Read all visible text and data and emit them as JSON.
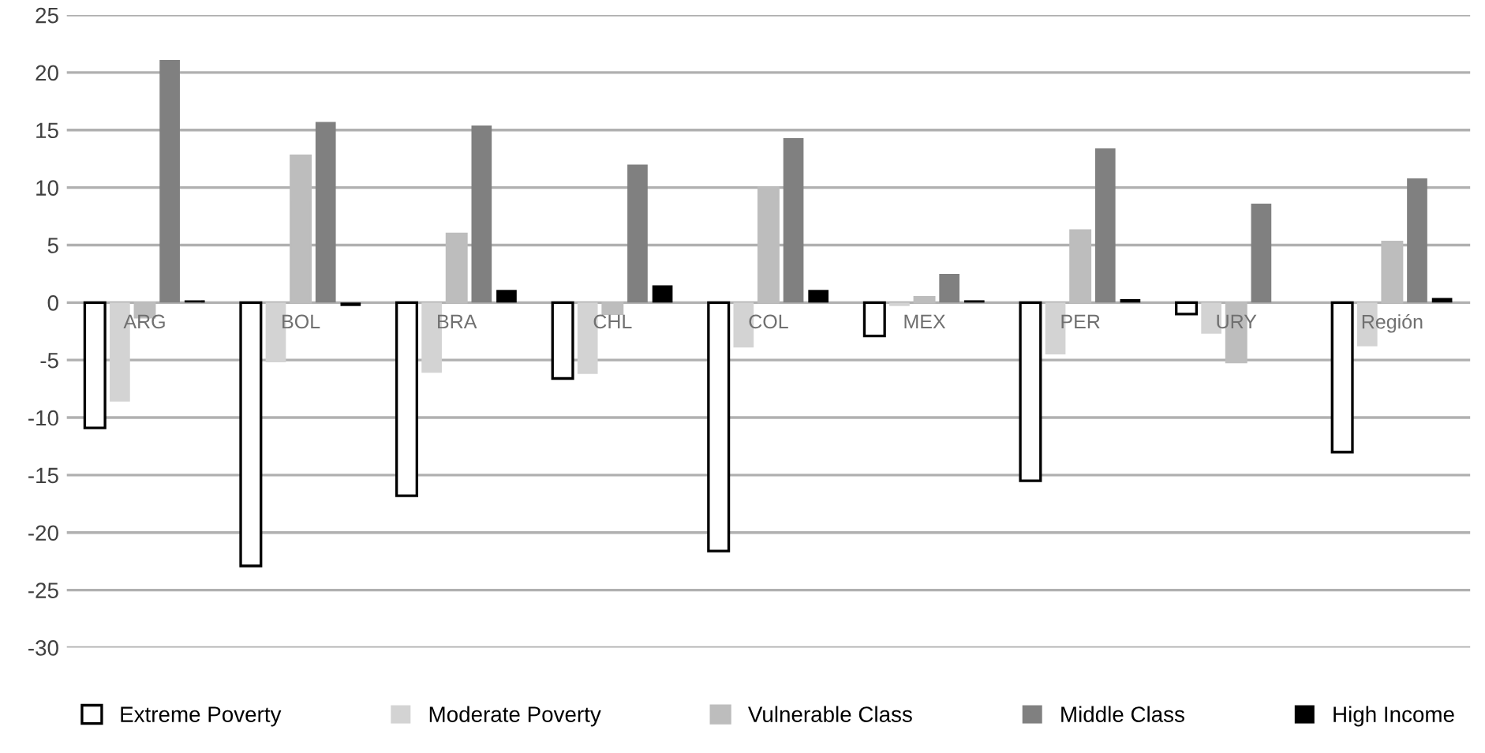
{
  "chart_data": {
    "type": "bar",
    "categories": [
      "ARG",
      "BOL",
      "BRA",
      "CHL",
      "COL",
      "MEX",
      "PER",
      "URY",
      "Región"
    ],
    "series": [
      {
        "name": "Extreme Poverty",
        "color": "#ffffff",
        "values": [
          -10.9,
          -22.9,
          -16.8,
          -6.6,
          -21.6,
          -2.9,
          -15.5,
          -1.0,
          -13.0
        ]
      },
      {
        "name": "Moderate Poverty",
        "color": "#d3d3d3",
        "values": [
          -8.6,
          -5.2,
          -6.1,
          -6.2,
          -3.9,
          -0.3,
          -4.5,
          -2.7,
          -3.8
        ]
      },
      {
        "name": "Vulnerable Class",
        "color": "#bdbdbd",
        "values": [
          -1.3,
          12.8,
          6.0,
          -1.0,
          10.0,
          0.5,
          6.3,
          -5.2,
          5.3
        ]
      },
      {
        "name": "Middle Class",
        "color": "#808080",
        "values": [
          21.1,
          15.7,
          15.4,
          12.0,
          14.3,
          2.5,
          13.4,
          8.6,
          10.8
        ]
      },
      {
        "name": "High Income",
        "color": "#000000",
        "values": [
          0.2,
          -0.3,
          1.1,
          1.5,
          1.1,
          0.2,
          0.3,
          0.0,
          0.4
        ]
      }
    ],
    "ylim": [
      -30,
      25
    ],
    "yticks": [
      -30,
      -25,
      -20,
      -15,
      -10,
      -5,
      0,
      5,
      10,
      15,
      20,
      25
    ],
    "grid": "y",
    "legend": "bottom"
  }
}
